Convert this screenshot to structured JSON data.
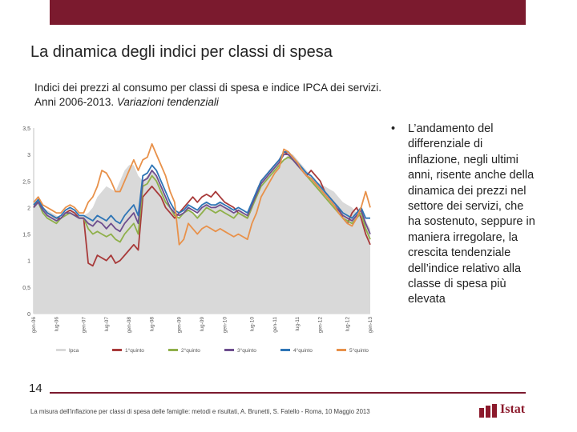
{
  "slide": {
    "title": "La dinamica degli indici per classi di spesa",
    "subtitle_line1": "Indici dei prezzi al consumo per classi di spesa e indice IPCA dei servizi.",
    "subtitle_line2a": "Anni 2006-2013. ",
    "subtitle_line2b": "Variazioni tendenziali",
    "bullet_marker": "•",
    "bullet_text": "L’andamento del differenziale di inflazione, negli ultimi anni, risente anche della dinamica dei prezzi nel settore dei servizi, che ha sostenuto, seppure in maniera irregolare, la crescita tendenziale dell’indice relativo alla classe di spesa più elevata",
    "page_number": "14",
    "footer": "La misura dell'inflazione per classi di spesa delle famiglie: metodi e risultati, A. Brunetti, S. Fatello - Roma, 10 Maggio 2013",
    "logo_text": "Istat"
  },
  "colors": {
    "brand": "#7b1a2e",
    "ipca_area": "#d9d9d9",
    "q1": "#a83a3a",
    "q2": "#8fb04a",
    "q3": "#6e4e8e",
    "q4": "#2e75b6",
    "q5": "#e8914a"
  },
  "chart_data": {
    "type": "line",
    "y_ticks": [
      "3,5",
      "3",
      "2,5",
      "2",
      "1,5",
      "1",
      "0,5",
      "0"
    ],
    "ylim": [
      0,
      3.5
    ],
    "x_tick_labels": [
      "gen-06",
      "lug-06",
      "gen-07",
      "lug-07",
      "gen-08",
      "lug-08",
      "gen-09",
      "lug-09",
      "gen-10",
      "lug-10",
      "gen-11",
      "lug-11",
      "gen-12",
      "lug-12",
      "gen-13"
    ],
    "legend": [
      "Ipca",
      "1°quinto",
      "2°quinto",
      "3°quinto",
      "4°quinto",
      "5°quinto"
    ],
    "series": [
      {
        "name": "Ipca",
        "style": "area",
        "color": "#d9d9d9",
        "values": [
          2.0,
          2.1,
          2.0,
          1.95,
          1.9,
          1.85,
          1.8,
          1.9,
          1.95,
          1.9,
          1.85,
          1.85,
          1.9,
          2.0,
          2.2,
          2.3,
          2.4,
          2.35,
          2.3,
          2.5,
          2.7,
          2.8,
          2.8,
          2.6,
          2.5,
          2.6,
          2.7,
          2.6,
          2.4,
          2.2,
          2.0,
          1.9,
          1.8,
          1.9,
          2.0,
          1.9,
          1.85,
          2.0,
          2.1,
          2.0,
          2.05,
          2.1,
          2.0,
          2.0,
          1.9,
          1.95,
          1.9,
          1.85,
          2.0,
          2.2,
          2.4,
          2.5,
          2.6,
          2.7,
          2.8,
          2.9,
          3.0,
          3.0,
          2.9,
          2.8,
          2.7,
          2.6,
          2.5,
          2.45,
          2.4,
          2.35,
          2.3,
          2.2,
          2.1,
          2.05,
          2.0,
          1.9,
          1.8,
          1.75,
          1.6
        ]
      },
      {
        "name": "1°quinto",
        "style": "line",
        "color": "#a83a3a",
        "values": [
          2.0,
          2.15,
          2.0,
          1.9,
          1.85,
          1.8,
          1.8,
          1.9,
          1.95,
          1.9,
          1.8,
          1.8,
          0.95,
          0.9,
          1.1,
          1.05,
          1.0,
          1.1,
          0.95,
          1.0,
          1.1,
          1.2,
          1.3,
          1.2,
          2.2,
          2.3,
          2.4,
          2.3,
          2.2,
          2.0,
          1.9,
          1.8,
          1.9,
          2.0,
          2.1,
          2.2,
          2.1,
          2.2,
          2.25,
          2.2,
          2.3,
          2.2,
          2.1,
          2.05,
          2.0,
          1.9,
          1.85,
          1.8,
          2.0,
          2.3,
          2.5,
          2.6,
          2.7,
          2.8,
          2.9,
          3.05,
          3.0,
          2.9,
          2.8,
          2.7,
          2.6,
          2.7,
          2.6,
          2.5,
          2.3,
          2.2,
          2.1,
          2.0,
          1.8,
          1.7,
          1.9,
          2.0,
          1.8,
          1.5,
          1.3
        ]
      },
      {
        "name": "2°quinto",
        "style": "line",
        "color": "#8fb04a",
        "values": [
          2.0,
          2.1,
          1.9,
          1.8,
          1.75,
          1.7,
          1.8,
          1.85,
          1.9,
          1.85,
          1.8,
          1.8,
          1.6,
          1.5,
          1.55,
          1.5,
          1.45,
          1.5,
          1.4,
          1.35,
          1.5,
          1.6,
          1.7,
          1.5,
          2.4,
          2.45,
          2.6,
          2.5,
          2.3,
          2.1,
          2.0,
          1.85,
          1.8,
          1.9,
          1.95,
          1.9,
          1.8,
          1.9,
          2.0,
          1.95,
          1.9,
          1.95,
          1.9,
          1.85,
          1.8,
          1.9,
          1.85,
          1.8,
          2.0,
          2.2,
          2.4,
          2.5,
          2.6,
          2.7,
          2.8,
          2.9,
          2.95,
          2.9,
          2.8,
          2.7,
          2.6,
          2.5,
          2.4,
          2.3,
          2.2,
          2.1,
          2.0,
          1.9,
          1.8,
          1.75,
          1.7,
          1.8,
          1.9,
          1.6,
          1.4
        ]
      },
      {
        "name": "3°quinto",
        "style": "line",
        "color": "#6e4e8e",
        "values": [
          2.0,
          2.1,
          1.95,
          1.85,
          1.8,
          1.75,
          1.8,
          1.9,
          1.9,
          1.85,
          1.8,
          1.8,
          1.7,
          1.65,
          1.75,
          1.7,
          1.6,
          1.7,
          1.6,
          1.55,
          1.7,
          1.8,
          1.9,
          1.7,
          2.5,
          2.55,
          2.7,
          2.6,
          2.4,
          2.2,
          2.0,
          1.9,
          1.85,
          1.9,
          2.0,
          1.95,
          1.9,
          2.0,
          2.05,
          2.0,
          2.0,
          2.05,
          2.0,
          1.95,
          1.9,
          1.95,
          1.9,
          1.85,
          2.05,
          2.25,
          2.45,
          2.55,
          2.65,
          2.75,
          2.85,
          3.0,
          3.0,
          2.9,
          2.8,
          2.7,
          2.6,
          2.55,
          2.45,
          2.35,
          2.25,
          2.15,
          2.05,
          1.95,
          1.85,
          1.8,
          1.75,
          1.85,
          1.95,
          1.7,
          1.5
        ]
      },
      {
        "name": "4°quinto",
        "style": "line",
        "color": "#2e75b6",
        "values": [
          2.05,
          2.15,
          2.0,
          1.9,
          1.85,
          1.8,
          1.85,
          1.95,
          2.0,
          1.95,
          1.85,
          1.85,
          1.8,
          1.75,
          1.85,
          1.8,
          1.75,
          1.85,
          1.75,
          1.7,
          1.85,
          1.95,
          2.05,
          1.85,
          2.6,
          2.65,
          2.8,
          2.7,
          2.5,
          2.3,
          2.1,
          1.95,
          1.9,
          1.95,
          2.05,
          2.0,
          1.95,
          2.05,
          2.1,
          2.05,
          2.05,
          2.1,
          2.05,
          2.0,
          1.95,
          2.0,
          1.95,
          1.9,
          2.1,
          2.3,
          2.5,
          2.6,
          2.7,
          2.8,
          2.9,
          3.05,
          3.05,
          2.95,
          2.85,
          2.75,
          2.65,
          2.6,
          2.5,
          2.4,
          2.3,
          2.2,
          2.1,
          2.0,
          1.9,
          1.85,
          1.8,
          1.9,
          2.0,
          1.8,
          1.8
        ]
      },
      {
        "name": "5°quinto",
        "style": "line",
        "color": "#e8914a",
        "values": [
          2.1,
          2.2,
          2.05,
          2.0,
          1.95,
          1.9,
          1.9,
          2.0,
          2.05,
          2.0,
          1.9,
          1.9,
          2.1,
          2.2,
          2.4,
          2.7,
          2.65,
          2.5,
          2.3,
          2.3,
          2.5,
          2.7,
          2.9,
          2.7,
          2.9,
          2.95,
          3.2,
          3.0,
          2.8,
          2.6,
          2.3,
          2.1,
          1.3,
          1.4,
          1.7,
          1.6,
          1.5,
          1.6,
          1.65,
          1.6,
          1.55,
          1.6,
          1.55,
          1.5,
          1.45,
          1.5,
          1.45,
          1.4,
          1.7,
          1.9,
          2.2,
          2.35,
          2.5,
          2.65,
          2.75,
          3.1,
          3.05,
          2.95,
          2.85,
          2.7,
          2.6,
          2.55,
          2.45,
          2.35,
          2.25,
          2.15,
          2.05,
          1.9,
          1.8,
          1.7,
          1.65,
          1.8,
          2.0,
          2.3,
          2.0
        ]
      }
    ]
  }
}
